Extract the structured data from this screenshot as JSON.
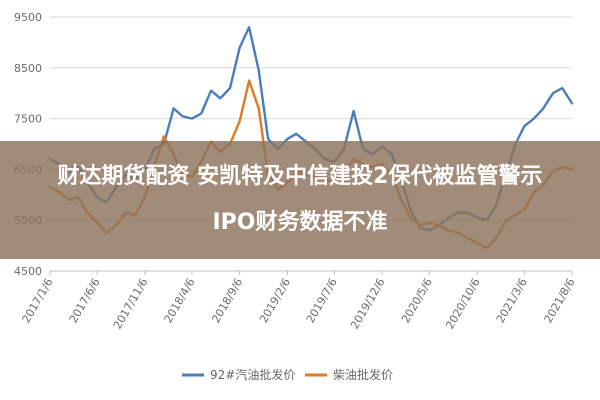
{
  "headline": {
    "line1": "财达期货配资 安凯特及中信建投2保代被监管警示",
    "line2": "IPO财务数据不准"
  },
  "colors": {
    "series_92": "#4a7ebb",
    "series_diesel": "#e07b24",
    "overlay": "#8c725c",
    "grid": "#d9d9d9"
  },
  "chart_data": {
    "type": "line",
    "ylim": [
      4500,
      9500
    ],
    "yticks": [
      4500,
      5500,
      6500,
      7500,
      8500,
      9500
    ],
    "ytick_labels": [
      "4500",
      "5500",
      "6500",
      "7500",
      "8500",
      "9500"
    ],
    "xlim": [
      "2017-01-06",
      "2021-08-06"
    ],
    "xtick_labels": [
      "2017/1/6",
      "2017/6/6",
      "2017/11/6",
      "2018/4/6",
      "2018/9/6",
      "2019/2/6",
      "2019/7/6",
      "2019/12/6",
      "2020/5/6",
      "2020/10/6",
      "2021/3/6",
      "2021/8/6"
    ],
    "xtick_dates": [
      "2017-01-06",
      "2017-06-06",
      "2017-11-06",
      "2018-04-06",
      "2018-09-06",
      "2019-02-06",
      "2019-07-06",
      "2019-12-06",
      "2020-05-06",
      "2020-10-06",
      "2021-03-06",
      "2021-08-06"
    ],
    "legend_position": "bottom",
    "series": [
      {
        "name": "92#汽油批发价",
        "color": "#4a7ebb",
        "points": [
          [
            "2017-01-06",
            6700
          ],
          [
            "2017-02-06",
            6600
          ],
          [
            "2017-03-06",
            6450
          ],
          [
            "2017-04-06",
            6550
          ],
          [
            "2017-05-06",
            6250
          ],
          [
            "2017-06-06",
            5950
          ],
          [
            "2017-07-06",
            5850
          ],
          [
            "2017-08-06",
            6150
          ],
          [
            "2017-09-06",
            6400
          ],
          [
            "2017-10-06",
            6300
          ],
          [
            "2017-11-06",
            6500
          ],
          [
            "2017-12-06",
            6900
          ],
          [
            "2018-01-06",
            7000
          ],
          [
            "2018-02-06",
            7700
          ],
          [
            "2018-03-06",
            7550
          ],
          [
            "2018-04-06",
            7500
          ],
          [
            "2018-05-06",
            7600
          ],
          [
            "2018-06-06",
            8050
          ],
          [
            "2018-07-06",
            7900
          ],
          [
            "2018-08-06",
            8100
          ],
          [
            "2018-09-06",
            8900
          ],
          [
            "2018-10-06",
            9300
          ],
          [
            "2018-11-06",
            8450
          ],
          [
            "2018-12-06",
            7100
          ],
          [
            "2019-01-06",
            6900
          ],
          [
            "2019-02-06",
            7100
          ],
          [
            "2019-03-06",
            7200
          ],
          [
            "2019-04-06",
            7050
          ],
          [
            "2019-05-06",
            6900
          ],
          [
            "2019-06-06",
            6700
          ],
          [
            "2019-07-06",
            6650
          ],
          [
            "2019-08-06",
            6900
          ],
          [
            "2019-09-06",
            7650
          ],
          [
            "2019-10-06",
            6900
          ],
          [
            "2019-11-06",
            6800
          ],
          [
            "2019-12-06",
            6950
          ],
          [
            "2020-01-06",
            6800
          ],
          [
            "2020-02-06",
            6300
          ],
          [
            "2020-03-06",
            5700
          ],
          [
            "2020-04-06",
            5350
          ],
          [
            "2020-05-06",
            5300
          ],
          [
            "2020-06-06",
            5400
          ],
          [
            "2020-07-06",
            5550
          ],
          [
            "2020-08-06",
            5650
          ],
          [
            "2020-09-06",
            5650
          ],
          [
            "2020-10-06",
            5550
          ],
          [
            "2020-11-06",
            5500
          ],
          [
            "2020-12-06",
            5800
          ],
          [
            "2021-01-06",
            6400
          ],
          [
            "2021-02-06",
            7000
          ],
          [
            "2021-03-06",
            7350
          ],
          [
            "2021-04-06",
            7500
          ],
          [
            "2021-05-06",
            7700
          ],
          [
            "2021-06-06",
            8000
          ],
          [
            "2021-07-06",
            8100
          ],
          [
            "2021-08-06",
            7800
          ]
        ]
      },
      {
        "name": "柴油批发价",
        "color": "#e07b24",
        "points": [
          [
            "2017-01-06",
            6150
          ],
          [
            "2017-02-06",
            6050
          ],
          [
            "2017-03-06",
            5900
          ],
          [
            "2017-04-06",
            5950
          ],
          [
            "2017-05-06",
            5650
          ],
          [
            "2017-06-06",
            5450
          ],
          [
            "2017-07-06",
            5250
          ],
          [
            "2017-08-06",
            5400
          ],
          [
            "2017-09-06",
            5650
          ],
          [
            "2017-10-06",
            5600
          ],
          [
            "2017-11-06",
            5950
          ],
          [
            "2017-12-06",
            6550
          ],
          [
            "2018-01-06",
            7150
          ],
          [
            "2018-02-06",
            6800
          ],
          [
            "2018-03-06",
            6400
          ],
          [
            "2018-04-06",
            6350
          ],
          [
            "2018-05-06",
            6650
          ],
          [
            "2018-06-06",
            7050
          ],
          [
            "2018-07-06",
            6850
          ],
          [
            "2018-08-06",
            7000
          ],
          [
            "2018-09-06",
            7450
          ],
          [
            "2018-10-06",
            8250
          ],
          [
            "2018-11-06",
            7700
          ],
          [
            "2018-12-06",
            6400
          ],
          [
            "2019-01-06",
            6100
          ],
          [
            "2019-02-06",
            6250
          ],
          [
            "2019-03-06",
            6450
          ],
          [
            "2019-04-06",
            6400
          ],
          [
            "2019-05-06",
            6350
          ],
          [
            "2019-06-06",
            6300
          ],
          [
            "2019-07-06",
            6250
          ],
          [
            "2019-08-06",
            6450
          ],
          [
            "2019-09-06",
            6700
          ],
          [
            "2019-10-06",
            6600
          ],
          [
            "2019-11-06",
            6550
          ],
          [
            "2019-12-06",
            6600
          ],
          [
            "2020-01-06",
            6400
          ],
          [
            "2020-02-06",
            5900
          ],
          [
            "2020-03-06",
            5550
          ],
          [
            "2020-04-06",
            5400
          ],
          [
            "2020-05-06",
            5450
          ],
          [
            "2020-06-06",
            5400
          ],
          [
            "2020-07-06",
            5300
          ],
          [
            "2020-08-06",
            5250
          ],
          [
            "2020-09-06",
            5150
          ],
          [
            "2020-10-06",
            5050
          ],
          [
            "2020-11-06",
            4950
          ],
          [
            "2020-12-06",
            5150
          ],
          [
            "2021-01-06",
            5500
          ],
          [
            "2021-02-06",
            5600
          ],
          [
            "2021-03-06",
            5700
          ],
          [
            "2021-04-06",
            6050
          ],
          [
            "2021-05-06",
            6200
          ],
          [
            "2021-06-06",
            6450
          ],
          [
            "2021-07-06",
            6550
          ],
          [
            "2021-08-06",
            6500
          ]
        ]
      }
    ]
  }
}
